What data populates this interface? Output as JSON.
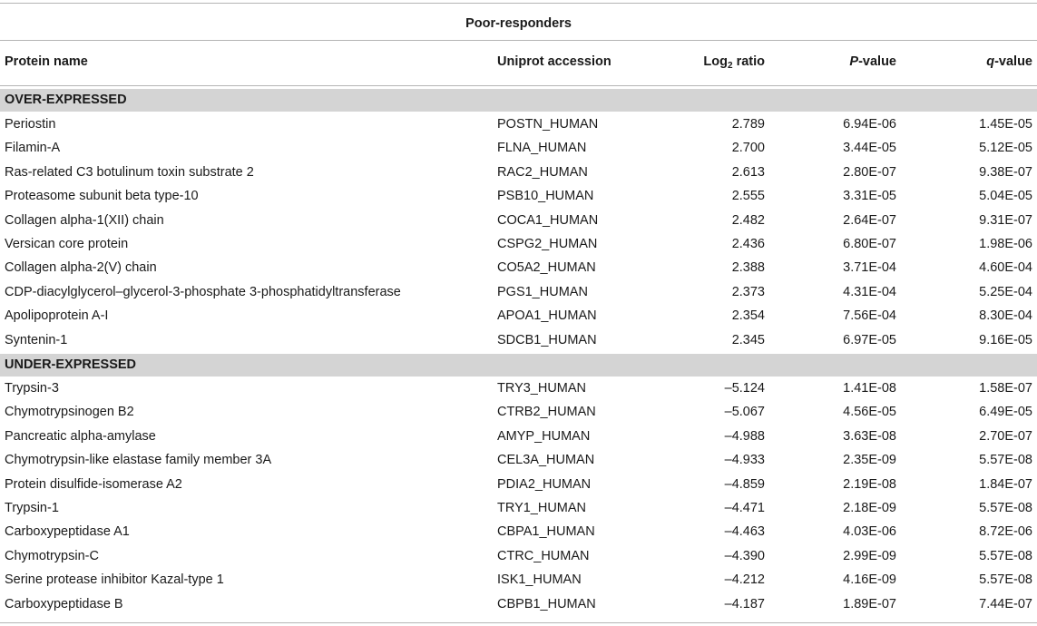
{
  "table": {
    "group_title": "Poor-responders",
    "headers": {
      "protein_name": "Protein name",
      "accession": "Uniprot accession",
      "log_prefix": "Log",
      "log_sub": "2",
      "log_suffix": " ratio",
      "p_italic": "P",
      "p_suffix": "-value",
      "q_italic": "q",
      "q_suffix": "-value"
    },
    "sections": [
      {
        "label": "OVER-EXPRESSED",
        "rows": [
          [
            "Periostin",
            "POSTN_HUMAN",
            "2.789",
            "6.94E-06",
            "1.45E-05"
          ],
          [
            "Filamin-A",
            "FLNA_HUMAN",
            "2.700",
            "3.44E-05",
            "5.12E-05"
          ],
          [
            "Ras-related C3 botulinum toxin substrate 2",
            "RAC2_HUMAN",
            "2.613",
            "2.80E-07",
            "9.38E-07"
          ],
          [
            "Proteasome subunit beta type-10",
            "PSB10_HUMAN",
            "2.555",
            "3.31E-05",
            "5.04E-05"
          ],
          [
            "Collagen alpha-1(XII) chain",
            "COCA1_HUMAN",
            "2.482",
            "2.64E-07",
            "9.31E-07"
          ],
          [
            "Versican core protein",
            "CSPG2_HUMAN",
            "2.436",
            "6.80E-07",
            "1.98E-06"
          ],
          [
            "Collagen alpha-2(V) chain",
            "CO5A2_HUMAN",
            "2.388",
            "3.71E-04",
            "4.60E-04"
          ],
          [
            "CDP-diacylglycerol–glycerol-3-phosphate 3-phosphatidyltransferase",
            "PGS1_HUMAN",
            "2.373",
            "4.31E-04",
            "5.25E-04"
          ],
          [
            "Apolipoprotein A-I",
            "APOA1_HUMAN",
            "2.354",
            "7.56E-04",
            "8.30E-04"
          ],
          [
            "Syntenin-1",
            "SDCB1_HUMAN",
            "2.345",
            "6.97E-05",
            "9.16E-05"
          ]
        ]
      },
      {
        "label": "UNDER-EXPRESSED",
        "rows": [
          [
            "Trypsin-3",
            "TRY3_HUMAN",
            "–5.124",
            "1.41E-08",
            "1.58E-07"
          ],
          [
            "Chymotrypsinogen B2",
            "CTRB2_HUMAN",
            "–5.067",
            "4.56E-05",
            "6.49E-05"
          ],
          [
            "Pancreatic alpha-amylase",
            "AMYP_HUMAN",
            "–4.988",
            "3.63E-08",
            "2.70E-07"
          ],
          [
            "Chymotrypsin-like elastase family member 3A",
            "CEL3A_HUMAN",
            "–4.933",
            "2.35E-09",
            "5.57E-08"
          ],
          [
            "Protein disulfide-isomerase A2",
            "PDIA2_HUMAN",
            "–4.859",
            "2.19E-08",
            "1.84E-07"
          ],
          [
            "Trypsin-1",
            "TRY1_HUMAN",
            "–4.471",
            "2.18E-09",
            "5.57E-08"
          ],
          [
            "Carboxypeptidase A1",
            "CBPA1_HUMAN",
            "–4.463",
            "4.03E-06",
            "8.72E-06"
          ],
          [
            "Chymotrypsin-C",
            "CTRC_HUMAN",
            "–4.390",
            "2.99E-09",
            "5.57E-08"
          ],
          [
            "Serine protease inhibitor Kazal-type 1",
            "ISK1_HUMAN",
            "–4.212",
            "4.16E-09",
            "5.57E-08"
          ],
          [
            "Carboxypeptidase B",
            "CBPB1_HUMAN",
            "–4.187",
            "1.89E-07",
            "7.44E-07"
          ]
        ]
      }
    ]
  }
}
